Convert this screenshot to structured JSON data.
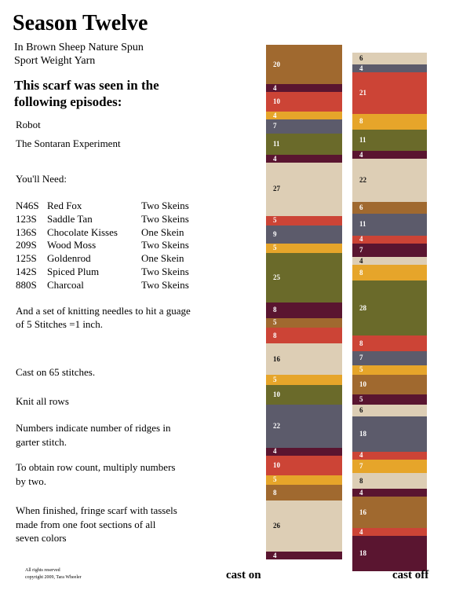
{
  "title": "Season Twelve",
  "yarn": [
    "In Brown Sheep Nature Spun",
    "Sport Weight Yarn"
  ],
  "episodes_heading": [
    "This scarf was seen in the",
    "following episodes:"
  ],
  "episodes": [
    "Robot",
    "The Sontaran Experiment"
  ],
  "needs_heading": "You'll Need:",
  "materials": [
    [
      "N46S",
      "Red Fox",
      "Two Skeins"
    ],
    [
      "123S",
      "Saddle Tan",
      "Two Skeins"
    ],
    [
      "136S",
      "Chocolate Kisses",
      "One Skein"
    ],
    [
      "209S",
      "Wood Moss",
      "Two Skeins"
    ],
    [
      "125S",
      "Goldenrod",
      "One Skein"
    ],
    [
      "142S",
      "Spiced Plum",
      "Two Skeins"
    ],
    [
      "880S",
      "Charcoal",
      "Two Skeins"
    ]
  ],
  "needles": [
    "And a set of knitting needles to hit a guage",
    "of 5 Stitches =1 inch."
  ],
  "instructions": [
    [
      "Cast on 65 stitches."
    ],
    [
      "Knit all rows"
    ],
    [
      "Numbers indicate number of ridges in",
      "garter stitch."
    ],
    [
      "To obtain row count, multiply numbers",
      "by two."
    ],
    [
      "When finished, fringe scarf with tassels",
      "made from one foot sections of all",
      "seven colors"
    ]
  ],
  "copyright": [
    "All rights reserved",
    "copyright 2009, Tara Wheeler"
  ],
  "columns": [
    {
      "label": "cast on",
      "stripes": [
        {
          "value": 20,
          "color": "#a0692f"
        },
        {
          "value": 4,
          "color": "#5a1530"
        },
        {
          "value": 10,
          "color": "#cc4436"
        },
        {
          "value": 4,
          "color": "#e6a52a"
        },
        {
          "value": 7,
          "color": "#5c5b6b"
        },
        {
          "value": 11,
          "color": "#6a6a2a"
        },
        {
          "value": 4,
          "color": "#5a1530"
        },
        {
          "value": 27,
          "color": "#ddceb5"
        },
        {
          "value": 5,
          "color": "#cc4436"
        },
        {
          "value": 9,
          "color": "#5c5b6b"
        },
        {
          "value": 5,
          "color": "#e6a52a"
        },
        {
          "value": 25,
          "color": "#6a6a2a"
        },
        {
          "value": 8,
          "color": "#5a1530"
        },
        {
          "value": 5,
          "color": "#a0692f"
        },
        {
          "value": 8,
          "color": "#cc4436"
        },
        {
          "value": 16,
          "color": "#ddceb5"
        },
        {
          "value": 5,
          "color": "#e6a52a"
        },
        {
          "value": 10,
          "color": "#6a6a2a"
        },
        {
          "value": 22,
          "color": "#5c5b6b"
        },
        {
          "value": 4,
          "color": "#5a1530"
        },
        {
          "value": 10,
          "color": "#cc4436"
        },
        {
          "value": 5,
          "color": "#e6a52a"
        },
        {
          "value": 8,
          "color": "#a0692f"
        },
        {
          "value": 26,
          "color": "#ddceb5"
        },
        {
          "value": 4,
          "color": "#5a1530"
        }
      ]
    },
    {
      "label": "cast off",
      "stripes": [
        {
          "value": 6,
          "color": "#ddceb5"
        },
        {
          "value": 4,
          "color": "#5c5b6b"
        },
        {
          "value": 21,
          "color": "#cc4436"
        },
        {
          "value": 8,
          "color": "#e6a52a"
        },
        {
          "value": 11,
          "color": "#6a6a2a"
        },
        {
          "value": 4,
          "color": "#5a1530"
        },
        {
          "value": 22,
          "color": "#ddceb5"
        },
        {
          "value": 6,
          "color": "#a0692f"
        },
        {
          "value": 11,
          "color": "#5c5b6b"
        },
        {
          "value": 4,
          "color": "#cc4436"
        },
        {
          "value": 7,
          "color": "#5a1530"
        },
        {
          "value": 4,
          "color": "#ddceb5"
        },
        {
          "value": 8,
          "color": "#e6a52a"
        },
        {
          "value": 28,
          "color": "#6a6a2a"
        },
        {
          "value": 8,
          "color": "#cc4436"
        },
        {
          "value": 7,
          "color": "#5c5b6b"
        },
        {
          "value": 5,
          "color": "#e6a52a"
        },
        {
          "value": 10,
          "color": "#a0692f"
        },
        {
          "value": 5,
          "color": "#5a1530"
        },
        {
          "value": 6,
          "color": "#ddceb5"
        },
        {
          "value": 18,
          "color": "#5c5b6b"
        },
        {
          "value": 4,
          "color": "#cc4436"
        },
        {
          "value": 7,
          "color": "#e6a52a"
        },
        {
          "value": 8,
          "color": "#ddceb5"
        },
        {
          "value": 4,
          "color": "#5a1530"
        },
        {
          "value": 16,
          "color": "#a0692f"
        },
        {
          "value": 4,
          "color": "#cc4436"
        },
        {
          "value": 18,
          "color": "#5a1530"
        }
      ]
    }
  ]
}
